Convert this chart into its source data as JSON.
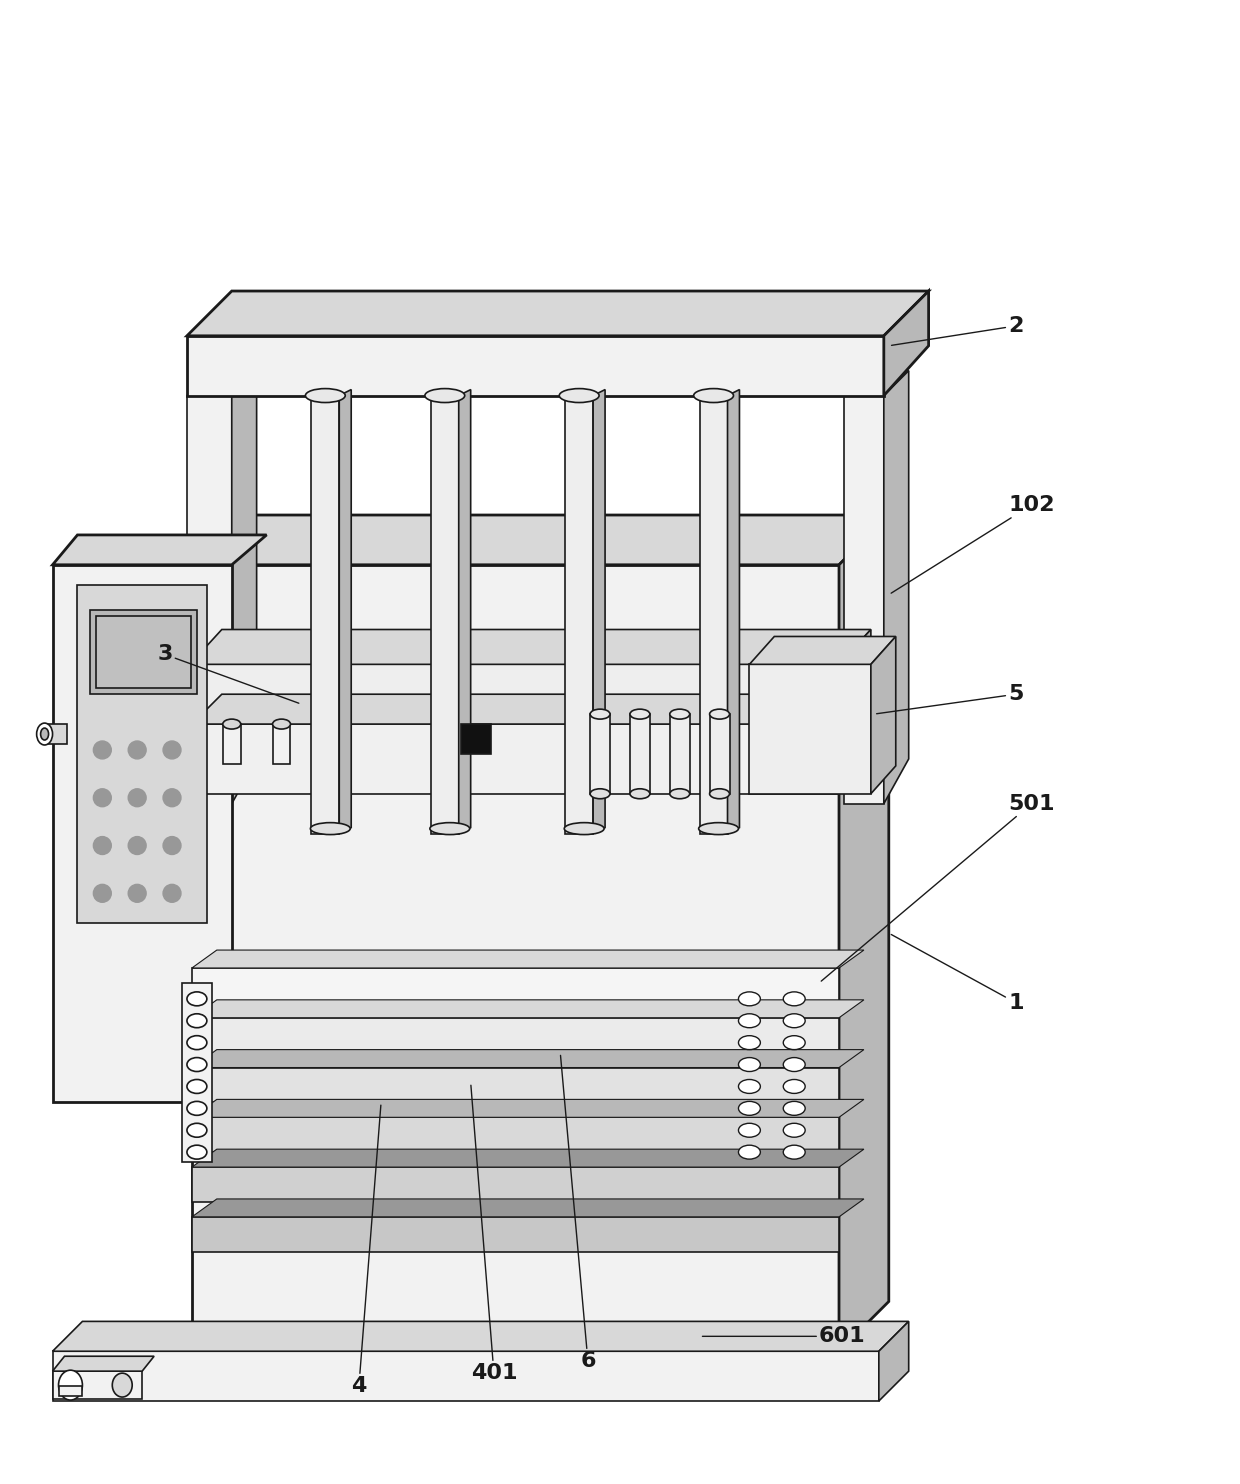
{
  "bg_color": "#ffffff",
  "line_color": "#1a1a1a",
  "lw": 1.2,
  "lw_thick": 2.0,
  "fig_width": 12.4,
  "fig_height": 14.84,
  "label_fontsize": 16,
  "gray_light": "#f2f2f2",
  "gray_mid": "#d8d8d8",
  "gray_dark": "#b8b8b8",
  "gray_xdark": "#989898",
  "white": "#ffffff",
  "black": "#111111"
}
